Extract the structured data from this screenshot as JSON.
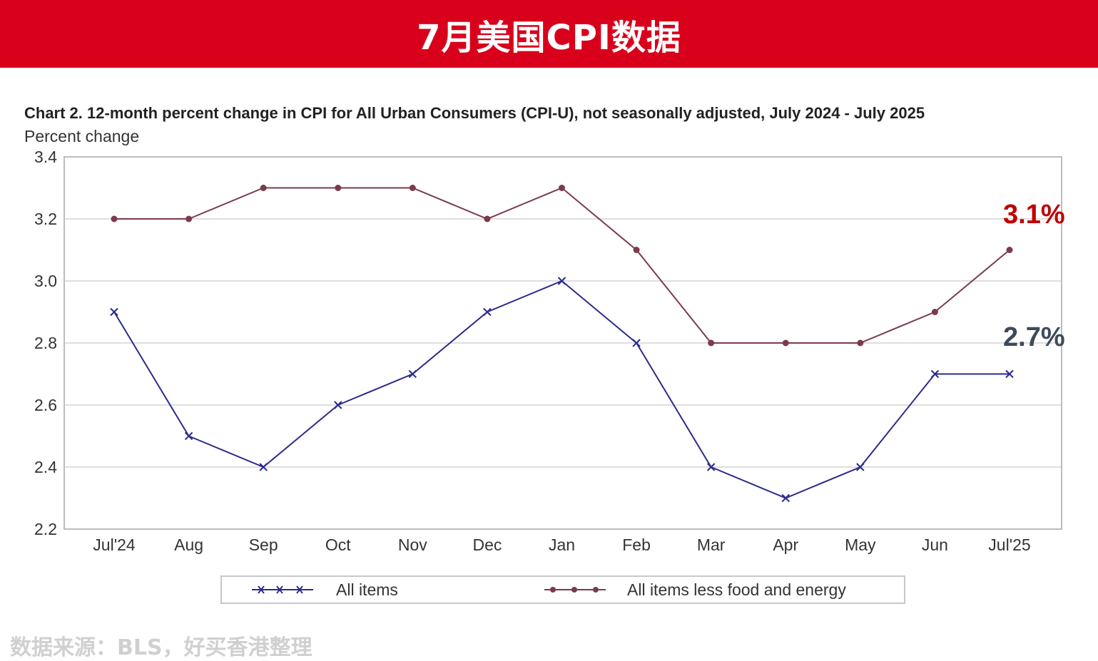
{
  "banner": {
    "title": "7月美国CPI数据",
    "bg_color": "#d9001b"
  },
  "footer": {
    "source": "数据来源：BLS，好买香港整理"
  },
  "callouts": [
    {
      "text": "3.1%",
      "color": "#c00000"
    },
    {
      "text": "2.7%",
      "color": "#3d4a5c"
    }
  ],
  "chart_data": {
    "type": "line",
    "title": "Chart 2. 12-month percent change in CPI for All Urban Consumers (CPI-U), not seasonally adjusted, July 2024 - July 2025",
    "xlabel": "",
    "ylabel": "Percent change",
    "categories": [
      "Jul'24",
      "Aug",
      "Sep",
      "Oct",
      "Nov",
      "Dec",
      "Jan",
      "Feb",
      "Mar",
      "Apr",
      "May",
      "Jun",
      "Jul'25"
    ],
    "ylim": [
      2.2,
      3.4
    ],
    "yticks": [
      "2.2",
      "2.4",
      "2.6",
      "2.8",
      "3.0",
      "3.2",
      "3.4"
    ],
    "grid": true,
    "legend_position": "bottom",
    "series": [
      {
        "name": "All items",
        "marker": "x",
        "color": "#2b2b8c",
        "values": [
          2.9,
          2.5,
          2.4,
          2.6,
          2.7,
          2.9,
          3.0,
          2.8,
          2.4,
          2.3,
          2.4,
          2.7,
          2.7
        ]
      },
      {
        "name": "All items less food and energy",
        "marker": "dot",
        "color": "#7b3b4b",
        "values": [
          3.2,
          3.2,
          3.3,
          3.3,
          3.3,
          3.2,
          3.3,
          3.1,
          2.8,
          2.8,
          2.8,
          2.9,
          3.1
        ]
      }
    ]
  }
}
